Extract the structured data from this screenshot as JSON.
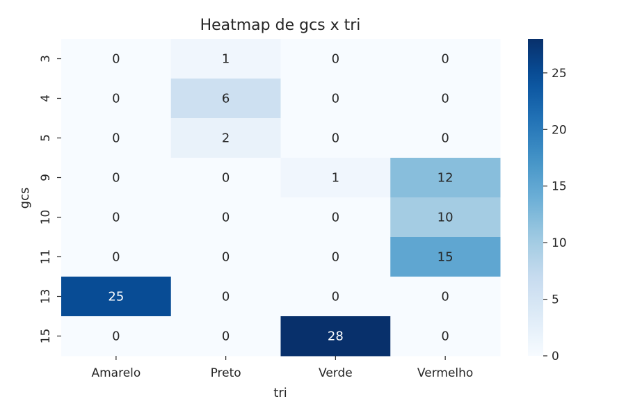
{
  "chart_data": {
    "type": "heatmap",
    "title": "Heatmap de gcs x tri",
    "xlabel": "tri",
    "ylabel": "gcs",
    "x_categories": [
      "Amarelo",
      "Preto",
      "Verde",
      "Vermelho"
    ],
    "y_categories": [
      "3",
      "4",
      "5",
      "9",
      "10",
      "11",
      "13",
      "15"
    ],
    "values": [
      [
        0,
        1,
        0,
        0
      ],
      [
        0,
        6,
        0,
        0
      ],
      [
        0,
        2,
        0,
        0
      ],
      [
        0,
        0,
        1,
        12
      ],
      [
        0,
        0,
        0,
        10
      ],
      [
        0,
        0,
        0,
        15
      ],
      [
        25,
        0,
        0,
        0
      ],
      [
        0,
        0,
        28,
        0
      ]
    ],
    "colormap": "Blues",
    "colorbar": {
      "min": 0,
      "max": 28,
      "ticks": [
        0,
        5,
        10,
        15,
        20,
        25
      ]
    },
    "annotations": true,
    "grid": false
  }
}
